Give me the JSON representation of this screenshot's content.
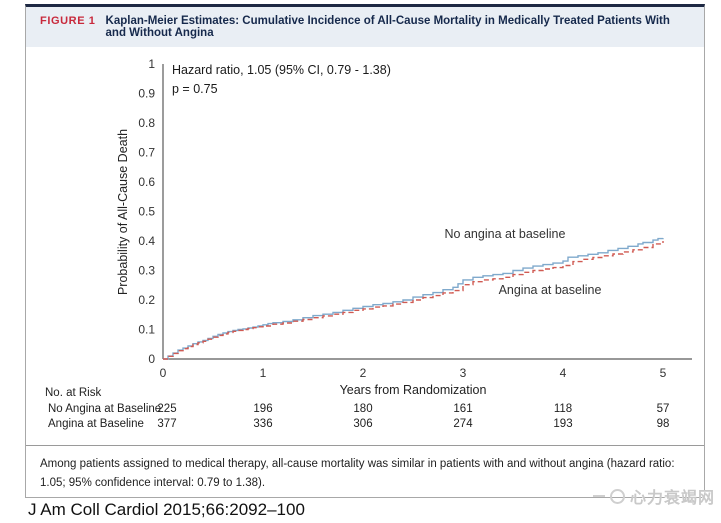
{
  "figure_header": {
    "tag": "FIGURE 1",
    "title": "Kaplan-Meier Estimates: Cumulative Incidence of All-Cause Mortality in Medically Treated Patients With and Without Angina"
  },
  "chart_data": {
    "type": "line",
    "subtype": "kaplan-meier-step",
    "title": "",
    "xlabel": "Years from Randomization",
    "ylabel": "Probability of All-Cause Death",
    "xlim": [
      0,
      5
    ],
    "ylim": [
      0,
      1
    ],
    "xticks": [
      0,
      1,
      2,
      3,
      4,
      5
    ],
    "yticks": [
      0,
      0.1,
      0.2,
      0.3,
      0.4,
      0.5,
      0.6,
      0.7,
      0.8,
      0.9,
      1
    ],
    "grid": false,
    "annotations": [
      "Hazard ratio, 1.05 (95% CI, 0.79 - 1.38)",
      "p = 0.75"
    ],
    "series": [
      {
        "name": "No angina at baseline",
        "color": "#7FA9CC",
        "style": "solid",
        "label_x": 3.42,
        "label_y": 0.41,
        "points": [
          [
            0,
            0
          ],
          [
            0.05,
            0.01
          ],
          [
            0.1,
            0.02
          ],
          [
            0.15,
            0.03
          ],
          [
            0.2,
            0.037
          ],
          [
            0.25,
            0.044
          ],
          [
            0.3,
            0.052
          ],
          [
            0.35,
            0.058
          ],
          [
            0.4,
            0.063
          ],
          [
            0.45,
            0.07
          ],
          [
            0.5,
            0.077
          ],
          [
            0.55,
            0.083
          ],
          [
            0.6,
            0.088
          ],
          [
            0.65,
            0.093
          ],
          [
            0.7,
            0.097
          ],
          [
            0.75,
            0.1
          ],
          [
            0.8,
            0.102
          ],
          [
            0.85,
            0.105
          ],
          [
            0.9,
            0.108
          ],
          [
            0.95,
            0.112
          ],
          [
            1,
            0.116
          ],
          [
            1.05,
            0.12
          ],
          [
            1.1,
            0.123
          ],
          [
            1.2,
            0.127
          ],
          [
            1.3,
            0.133
          ],
          [
            1.4,
            0.14
          ],
          [
            1.5,
            0.147
          ],
          [
            1.6,
            0.152
          ],
          [
            1.7,
            0.158
          ],
          [
            1.8,
            0.165
          ],
          [
            1.9,
            0.172
          ],
          [
            2,
            0.178
          ],
          [
            2.1,
            0.184
          ],
          [
            2.2,
            0.188
          ],
          [
            2.3,
            0.194
          ],
          [
            2.4,
            0.2
          ],
          [
            2.5,
            0.21
          ],
          [
            2.6,
            0.218
          ],
          [
            2.7,
            0.225
          ],
          [
            2.8,
            0.235
          ],
          [
            2.9,
            0.243
          ],
          [
            2.95,
            0.255
          ],
          [
            3,
            0.268
          ],
          [
            3.1,
            0.277
          ],
          [
            3.2,
            0.282
          ],
          [
            3.3,
            0.286
          ],
          [
            3.4,
            0.29
          ],
          [
            3.5,
            0.3
          ],
          [
            3.6,
            0.308
          ],
          [
            3.7,
            0.315
          ],
          [
            3.8,
            0.32
          ],
          [
            3.9,
            0.325
          ],
          [
            4,
            0.332
          ],
          [
            4.05,
            0.345
          ],
          [
            4.15,
            0.35
          ],
          [
            4.25,
            0.355
          ],
          [
            4.35,
            0.36
          ],
          [
            4.45,
            0.368
          ],
          [
            4.55,
            0.375
          ],
          [
            4.65,
            0.382
          ],
          [
            4.75,
            0.39
          ],
          [
            4.8,
            0.395
          ],
          [
            4.9,
            0.403
          ],
          [
            4.95,
            0.408
          ],
          [
            5,
            0.41
          ]
        ]
      },
      {
        "name": "Angina at baseline",
        "color": "#D05A52",
        "style": "dashed",
        "label_x": 3.87,
        "label_y": 0.22,
        "points": [
          [
            0,
            0
          ],
          [
            0.05,
            0.009
          ],
          [
            0.1,
            0.019
          ],
          [
            0.15,
            0.028
          ],
          [
            0.2,
            0.035
          ],
          [
            0.25,
            0.042
          ],
          [
            0.3,
            0.049
          ],
          [
            0.35,
            0.055
          ],
          [
            0.4,
            0.06
          ],
          [
            0.45,
            0.067
          ],
          [
            0.5,
            0.074
          ],
          [
            0.55,
            0.08
          ],
          [
            0.6,
            0.085
          ],
          [
            0.65,
            0.09
          ],
          [
            0.7,
            0.094
          ],
          [
            0.75,
            0.097
          ],
          [
            0.8,
            0.1
          ],
          [
            0.85,
            0.103
          ],
          [
            0.9,
            0.106
          ],
          [
            0.95,
            0.109
          ],
          [
            1,
            0.112
          ],
          [
            1.1,
            0.118
          ],
          [
            1.2,
            0.122
          ],
          [
            1.3,
            0.128
          ],
          [
            1.4,
            0.134
          ],
          [
            1.5,
            0.14
          ],
          [
            1.6,
            0.146
          ],
          [
            1.7,
            0.152
          ],
          [
            1.8,
            0.158
          ],
          [
            1.9,
            0.165
          ],
          [
            2,
            0.17
          ],
          [
            2.1,
            0.176
          ],
          [
            2.2,
            0.18
          ],
          [
            2.3,
            0.186
          ],
          [
            2.4,
            0.192
          ],
          [
            2.5,
            0.2
          ],
          [
            2.6,
            0.208
          ],
          [
            2.7,
            0.215
          ],
          [
            2.8,
            0.224
          ],
          [
            2.9,
            0.232
          ],
          [
            3,
            0.252
          ],
          [
            3.1,
            0.262
          ],
          [
            3.2,
            0.268
          ],
          [
            3.3,
            0.272
          ],
          [
            3.4,
            0.277
          ],
          [
            3.5,
            0.286
          ],
          [
            3.6,
            0.294
          ],
          [
            3.7,
            0.3
          ],
          [
            3.8,
            0.305
          ],
          [
            3.9,
            0.31
          ],
          [
            4,
            0.317
          ],
          [
            4.1,
            0.33
          ],
          [
            4.2,
            0.338
          ],
          [
            4.3,
            0.344
          ],
          [
            4.4,
            0.35
          ],
          [
            4.5,
            0.356
          ],
          [
            4.6,
            0.363
          ],
          [
            4.7,
            0.37
          ],
          [
            4.8,
            0.378
          ],
          [
            4.9,
            0.39
          ],
          [
            5,
            0.4
          ]
        ]
      }
    ]
  },
  "risk_table": {
    "title": "No. at Risk",
    "rows": [
      {
        "label": "No Angina at Baseline",
        "values": [
          "225",
          "196",
          "180",
          "161",
          "118",
          "57"
        ]
      },
      {
        "label": "Angina at Baseline",
        "values": [
          "377",
          "336",
          "306",
          "274",
          "193",
          "98"
        ]
      }
    ]
  },
  "caption": "Among patients assigned to medical therapy, all-cause mortality was similar in patients with and without angina (hazard ratio: 1.05; 95% confidence interval: 0.79 to 1.38).",
  "citation": "J Am Coll Cardiol 2015;66:2092–100",
  "watermark": {
    "text": "心力衰竭网"
  },
  "colors": {
    "figure_tag": "#C8293C",
    "title_navy": "#16294C",
    "header_bg": "#E9EEF4",
    "card_top_border": "#1D2843",
    "card_border": "#A8A8A8",
    "axis": "#5A5A5A",
    "no_angina_line": "#7FA9CC",
    "angina_line": "#D05A52"
  }
}
